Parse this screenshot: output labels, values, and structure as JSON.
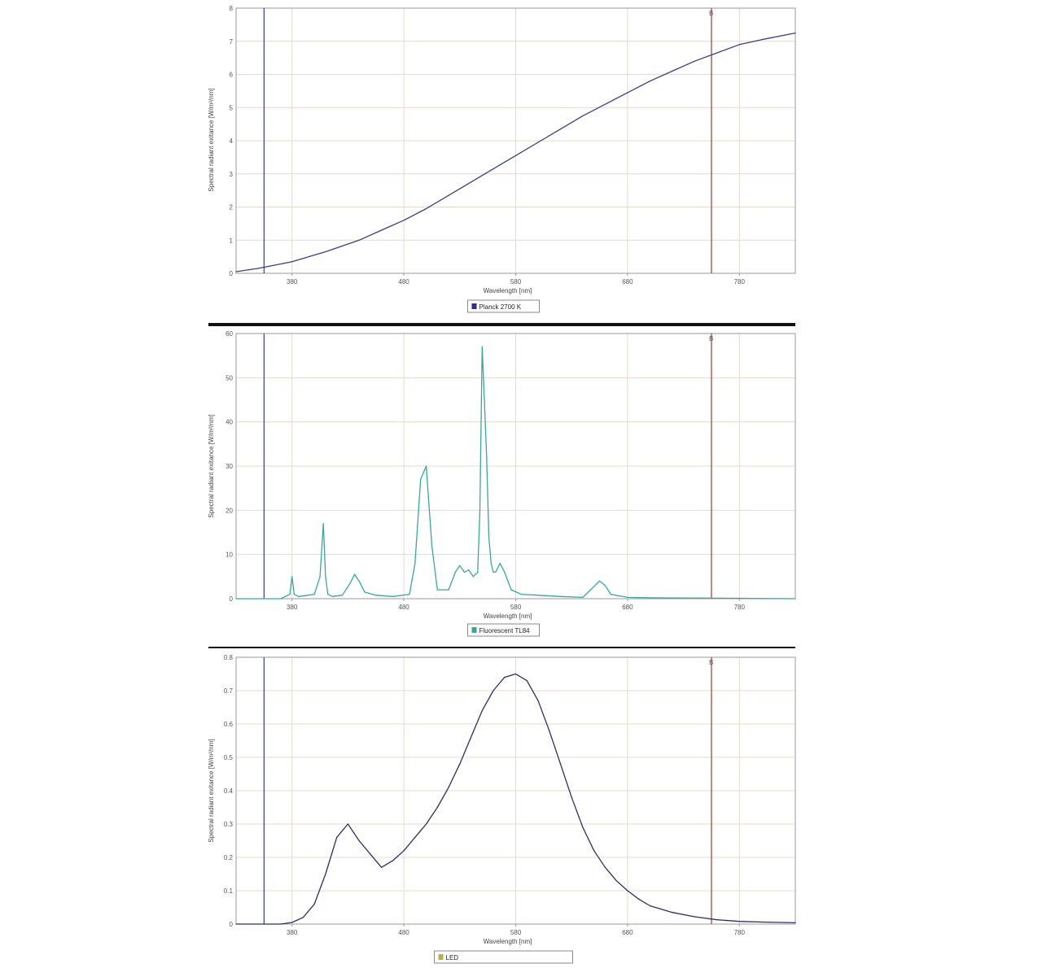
{
  "colors": {
    "grid": "#e9d8cc",
    "frame": "#9a9a9a",
    "marker_left": "#3a3f8f",
    "marker_right": "#9a3b2e",
    "separator": "#111111",
    "line_panel1": "#3b3f7a",
    "line_panel2": "#3aa69a",
    "line_panel3": "#2b2f60",
    "legend_swatch_1": "#2d2f88",
    "legend_swatch_2": "#3aa69a",
    "legend_swatch_3a": "#b5b04a",
    "legend_swatch_3b": "#2d2f88"
  },
  "chart_data": [
    {
      "type": "line",
      "title": "",
      "ylabel": "Spectral radiant exitance [W/m²/nm]",
      "xlabel": "Wavelength [nm]",
      "xlim": [
        330,
        830
      ],
      "ylim": [
        0,
        8
      ],
      "x_ticks": [
        380,
        480,
        580,
        680,
        780
      ],
      "y_ticks": [
        0,
        1,
        2,
        3,
        4,
        5,
        6,
        7,
        8
      ],
      "markers": [
        {
          "x": 355,
          "label": ""
        },
        {
          "x": 755,
          "label": "B"
        }
      ],
      "series": [
        {
          "name": "Planck 2700 K",
          "x": [
            330,
            350,
            380,
            410,
            440,
            460,
            480,
            500,
            520,
            540,
            560,
            580,
            600,
            620,
            640,
            660,
            680,
            700,
            720,
            740,
            760,
            780,
            800,
            830
          ],
          "y": [
            0.05,
            0.15,
            0.35,
            0.65,
            1.0,
            1.3,
            1.6,
            1.95,
            2.35,
            2.75,
            3.15,
            3.55,
            3.95,
            4.35,
            4.75,
            5.1,
            5.45,
            5.8,
            6.1,
            6.4,
            6.65,
            6.9,
            7.05,
            7.25
          ]
        }
      ]
    },
    {
      "type": "line",
      "title": "",
      "ylabel": "Spectral radiant exitance [W/m²/nm]",
      "xlabel": "Wavelength [nm]",
      "xlim": [
        330,
        830
      ],
      "ylim": [
        0,
        60
      ],
      "x_ticks": [
        380,
        480,
        580,
        680,
        780
      ],
      "y_ticks": [
        0,
        10,
        20,
        30,
        40,
        50,
        60
      ],
      "markers": [
        {
          "x": 355,
          "label": ""
        },
        {
          "x": 755,
          "label": "B"
        }
      ],
      "series": [
        {
          "name": "Fluorescent TL84",
          "x": [
            330,
            370,
            378,
            380,
            382,
            386,
            400,
            405,
            408,
            410,
            412,
            416,
            425,
            432,
            436,
            440,
            445,
            455,
            470,
            485,
            490,
            495,
            500,
            505,
            510,
            520,
            526,
            530,
            534,
            538,
            542,
            546,
            548,
            550,
            552,
            554,
            556,
            558,
            560,
            562,
            566,
            570,
            576,
            585,
            600,
            620,
            640,
            655,
            660,
            665,
            680,
            700,
            780,
            830
          ],
          "y": [
            0,
            0,
            1,
            5,
            1,
            0.5,
            1,
            5,
            17,
            5,
            1,
            0.5,
            0.8,
            3.5,
            5.5,
            4,
            1.5,
            0.8,
            0.5,
            1,
            8,
            27,
            30,
            12,
            2,
            2,
            6,
            7.5,
            6,
            6.5,
            5,
            6,
            20,
            57,
            45,
            32,
            14,
            8,
            6,
            6,
            8,
            6,
            2,
            1,
            0.8,
            0.5,
            0.3,
            4,
            3,
            1,
            0.3,
            0.2,
            0.1,
            0
          ]
        }
      ]
    },
    {
      "type": "line",
      "title": "",
      "ylabel": "Spectral radiant exitance [W/m²/nm]",
      "xlabel": "Wavelength [nm]",
      "xlim": [
        330,
        830
      ],
      "ylim": [
        0,
        0.8
      ],
      "x_ticks": [
        380,
        480,
        580,
        680,
        780
      ],
      "y_ticks": [
        0,
        0.1,
        0.2,
        0.3,
        0.4,
        0.5,
        0.6,
        0.7,
        0.8
      ],
      "markers": [
        {
          "x": 355,
          "label": ""
        },
        {
          "x": 755,
          "label": "B"
        }
      ],
      "series": [
        {
          "name": "LED",
          "x": [
            330,
            370,
            380,
            390,
            400,
            410,
            420,
            430,
            440,
            450,
            460,
            470,
            480,
            490,
            500,
            510,
            520,
            530,
            540,
            550,
            560,
            570,
            580,
            590,
            600,
            610,
            620,
            630,
            640,
            650,
            660,
            670,
            680,
            690,
            700,
            720,
            740,
            760,
            780,
            800,
            830
          ],
          "y": [
            0,
            0,
            0.005,
            0.02,
            0.06,
            0.15,
            0.26,
            0.3,
            0.25,
            0.21,
            0.17,
            0.19,
            0.22,
            0.26,
            0.3,
            0.35,
            0.41,
            0.48,
            0.56,
            0.64,
            0.7,
            0.74,
            0.75,
            0.73,
            0.67,
            0.58,
            0.48,
            0.38,
            0.29,
            0.22,
            0.17,
            0.13,
            0.1,
            0.075,
            0.055,
            0.035,
            0.022,
            0.013,
            0.008,
            0.006,
            0.004
          ]
        }
      ]
    }
  ]
}
